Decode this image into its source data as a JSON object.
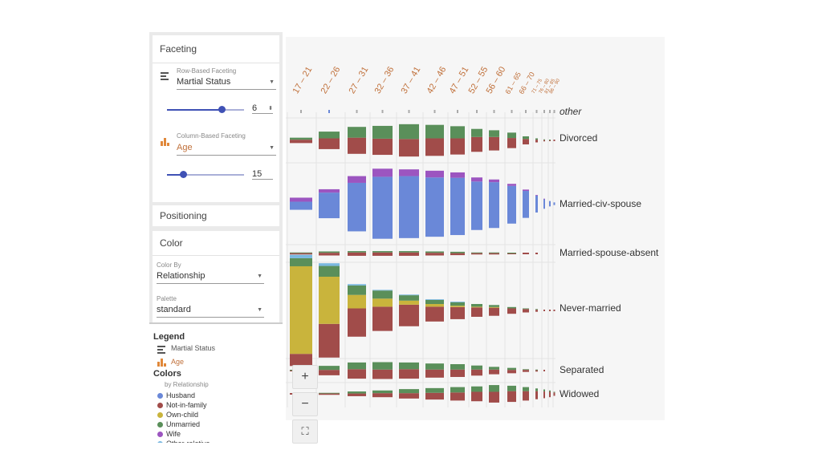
{
  "faceting": {
    "title": "Faceting",
    "row": {
      "label": "Row-Based Faceting",
      "value": "Martial Status",
      "count": "6"
    },
    "column": {
      "label": "Column-Based Faceting",
      "value": "Age",
      "count": "15"
    }
  },
  "positioning": {
    "title": "Positioning"
  },
  "color": {
    "title": "Color",
    "color_by_label": "Color By",
    "color_by_value": "Relationship",
    "palette_label": "Palette",
    "palette_value": "standard"
  },
  "legend": {
    "title": "Legend",
    "row_name": "Martial Status",
    "col_name": "Age",
    "colors_title": "Colors",
    "colors_sub": "by Relationship",
    "items": [
      {
        "label": "Husband",
        "color": "#6a88d8"
      },
      {
        "label": "Not-in-family",
        "color": "#a14c4a"
      },
      {
        "label": "Own-child",
        "color": "#c9b43c"
      },
      {
        "label": "Unmarried",
        "color": "#5a8f5a"
      },
      {
        "label": "Wife",
        "color": "#9c55c0"
      },
      {
        "label": "Other-relative",
        "color": "#7ab8e0"
      }
    ]
  },
  "zoom": {
    "in": "+",
    "out": "−",
    "fit": "⛶"
  },
  "chart_data": {
    "type": "bar",
    "columns": [
      "17 – 21",
      "22 – 26",
      "27 – 31",
      "32 – 36",
      "37 – 41",
      "42 – 46",
      "47 – 51",
      "52 – 55",
      "56 – 60",
      "61 – 65",
      "66 – 70",
      "71 – 75",
      "76 – 80",
      "81 – 85",
      "86 – 90"
    ],
    "rows": [
      "other",
      "Divorced",
      "Married-civ-spouse",
      "Married-spouse-absent",
      "Never-married",
      "Separated",
      "Widowed"
    ],
    "series_names": [
      "Husband",
      "Not-in-family",
      "Own-child",
      "Unmarried",
      "Wife",
      "Other-relative"
    ],
    "cells": [
      {
        "row": "Divorced",
        "values": [
          [
            0,
            5,
            0,
            3,
            0,
            0
          ],
          [
            0,
            16,
            0,
            10,
            0,
            0
          ],
          [
            0,
            24,
            0,
            16,
            0,
            0
          ],
          [
            0,
            24,
            0,
            19,
            0,
            0
          ],
          [
            0,
            26,
            0,
            22,
            0,
            0
          ],
          [
            0,
            26,
            0,
            20,
            0,
            0
          ],
          [
            0,
            24,
            0,
            18,
            0,
            0
          ],
          [
            0,
            22,
            0,
            12,
            0,
            0
          ],
          [
            0,
            20,
            0,
            10,
            0,
            0
          ],
          [
            0,
            15,
            0,
            8,
            0,
            0
          ],
          [
            0,
            8,
            0,
            4,
            0,
            0
          ],
          [
            0,
            4,
            0,
            2,
            0,
            0
          ],
          [
            0,
            2,
            0,
            1,
            0,
            0
          ],
          [
            0,
            1,
            0,
            1,
            0,
            0
          ],
          [
            0,
            1,
            0,
            0,
            0,
            0
          ]
        ]
      },
      {
        "row": "Married-civ-spouse",
        "values": [
          [
            12,
            0,
            0,
            0,
            6,
            0
          ],
          [
            38,
            0,
            0,
            0,
            5,
            0
          ],
          [
            72,
            0,
            0,
            0,
            10,
            0
          ],
          [
            92,
            0,
            0,
            0,
            12,
            0
          ],
          [
            92,
            0,
            0,
            0,
            10,
            0
          ],
          [
            88,
            0,
            0,
            0,
            10,
            0
          ],
          [
            85,
            0,
            0,
            0,
            8,
            0
          ],
          [
            72,
            0,
            0,
            0,
            6,
            0
          ],
          [
            68,
            0,
            0,
            0,
            4,
            0
          ],
          [
            56,
            0,
            0,
            0,
            3,
            0
          ],
          [
            40,
            0,
            0,
            0,
            2,
            0
          ],
          [
            25,
            0,
            0,
            0,
            1,
            0
          ],
          [
            14,
            0,
            0,
            0,
            1,
            0
          ],
          [
            8,
            0,
            0,
            0,
            0,
            0
          ],
          [
            4,
            0,
            0,
            0,
            0,
            0
          ]
        ]
      },
      {
        "row": "Married-spouse-absent",
        "values": [
          [
            0,
            2,
            0,
            1,
            0,
            0
          ],
          [
            0,
            4,
            0,
            2,
            0,
            0
          ],
          [
            0,
            5,
            0,
            2,
            0,
            0
          ],
          [
            0,
            5,
            0,
            2,
            0,
            0
          ],
          [
            0,
            5,
            0,
            2,
            0,
            0
          ],
          [
            0,
            4,
            0,
            2,
            0,
            0
          ],
          [
            0,
            3,
            0,
            2,
            0,
            0
          ],
          [
            0,
            2,
            0,
            1,
            0,
            0
          ],
          [
            0,
            2,
            0,
            1,
            0,
            0
          ],
          [
            0,
            1,
            0,
            1,
            0,
            0
          ],
          [
            0,
            1,
            0,
            0,
            0,
            0
          ],
          [
            0,
            1,
            0,
            0,
            0,
            0
          ],
          [
            0,
            0,
            0,
            0,
            0,
            0
          ],
          [
            0,
            0,
            0,
            0,
            0,
            0
          ],
          [
            0,
            0,
            0,
            0,
            0,
            0
          ]
        ]
      },
      {
        "row": "Never-married",
        "values": [
          [
            0,
            18,
            130,
            12,
            0,
            5
          ],
          [
            0,
            50,
            70,
            16,
            0,
            4
          ],
          [
            0,
            42,
            20,
            14,
            0,
            2
          ],
          [
            0,
            36,
            12,
            12,
            0,
            1
          ],
          [
            0,
            32,
            6,
            8,
            0,
            1
          ],
          [
            0,
            22,
            4,
            6,
            0,
            1
          ],
          [
            0,
            18,
            2,
            5,
            0,
            1
          ],
          [
            0,
            14,
            1,
            4,
            0,
            0
          ],
          [
            0,
            12,
            1,
            3,
            0,
            0
          ],
          [
            0,
            8,
            0,
            2,
            0,
            0
          ],
          [
            0,
            5,
            0,
            1,
            0,
            0
          ],
          [
            0,
            3,
            0,
            1,
            0,
            0
          ],
          [
            0,
            2,
            0,
            0,
            0,
            0
          ],
          [
            0,
            1,
            0,
            0,
            0,
            0
          ],
          [
            0,
            1,
            0,
            0,
            0,
            0
          ]
        ]
      },
      {
        "row": "Separated",
        "values": [
          [
            0,
            1,
            0,
            1,
            0,
            0
          ],
          [
            0,
            8,
            0,
            6,
            0,
            0
          ],
          [
            0,
            14,
            0,
            10,
            0,
            0
          ],
          [
            0,
            14,
            0,
            11,
            0,
            0
          ],
          [
            0,
            14,
            0,
            10,
            0,
            0
          ],
          [
            0,
            12,
            0,
            9,
            0,
            0
          ],
          [
            0,
            11,
            0,
            8,
            0,
            0
          ],
          [
            0,
            9,
            0,
            6,
            0,
            0
          ],
          [
            0,
            7,
            0,
            4,
            0,
            0
          ],
          [
            0,
            5,
            0,
            3,
            0,
            0
          ],
          [
            0,
            3,
            0,
            1,
            0,
            0
          ],
          [
            0,
            2,
            0,
            1,
            0,
            0
          ],
          [
            0,
            1,
            0,
            0,
            0,
            0
          ],
          [
            0,
            0,
            0,
            0,
            0,
            0
          ],
          [
            0,
            0,
            0,
            0,
            0,
            0
          ]
        ]
      },
      {
        "row": "Widowed",
        "values": [
          [
            0,
            1,
            0,
            0,
            0,
            0
          ],
          [
            0,
            2,
            0,
            1,
            0,
            0
          ],
          [
            0,
            4,
            0,
            3,
            0,
            0
          ],
          [
            0,
            6,
            0,
            4,
            0,
            0
          ],
          [
            0,
            8,
            0,
            6,
            0,
            0
          ],
          [
            0,
            10,
            0,
            7,
            0,
            0
          ],
          [
            0,
            12,
            0,
            8,
            0,
            0
          ],
          [
            0,
            14,
            0,
            8,
            0,
            0
          ],
          [
            0,
            16,
            0,
            10,
            0,
            0
          ],
          [
            0,
            16,
            0,
            8,
            0,
            0
          ],
          [
            0,
            14,
            0,
            6,
            0,
            0
          ],
          [
            0,
            12,
            0,
            4,
            0,
            0
          ],
          [
            0,
            10,
            0,
            3,
            0,
            0
          ],
          [
            0,
            8,
            0,
            2,
            0,
            0
          ],
          [
            0,
            5,
            0,
            1,
            0,
            0
          ]
        ]
      }
    ]
  }
}
